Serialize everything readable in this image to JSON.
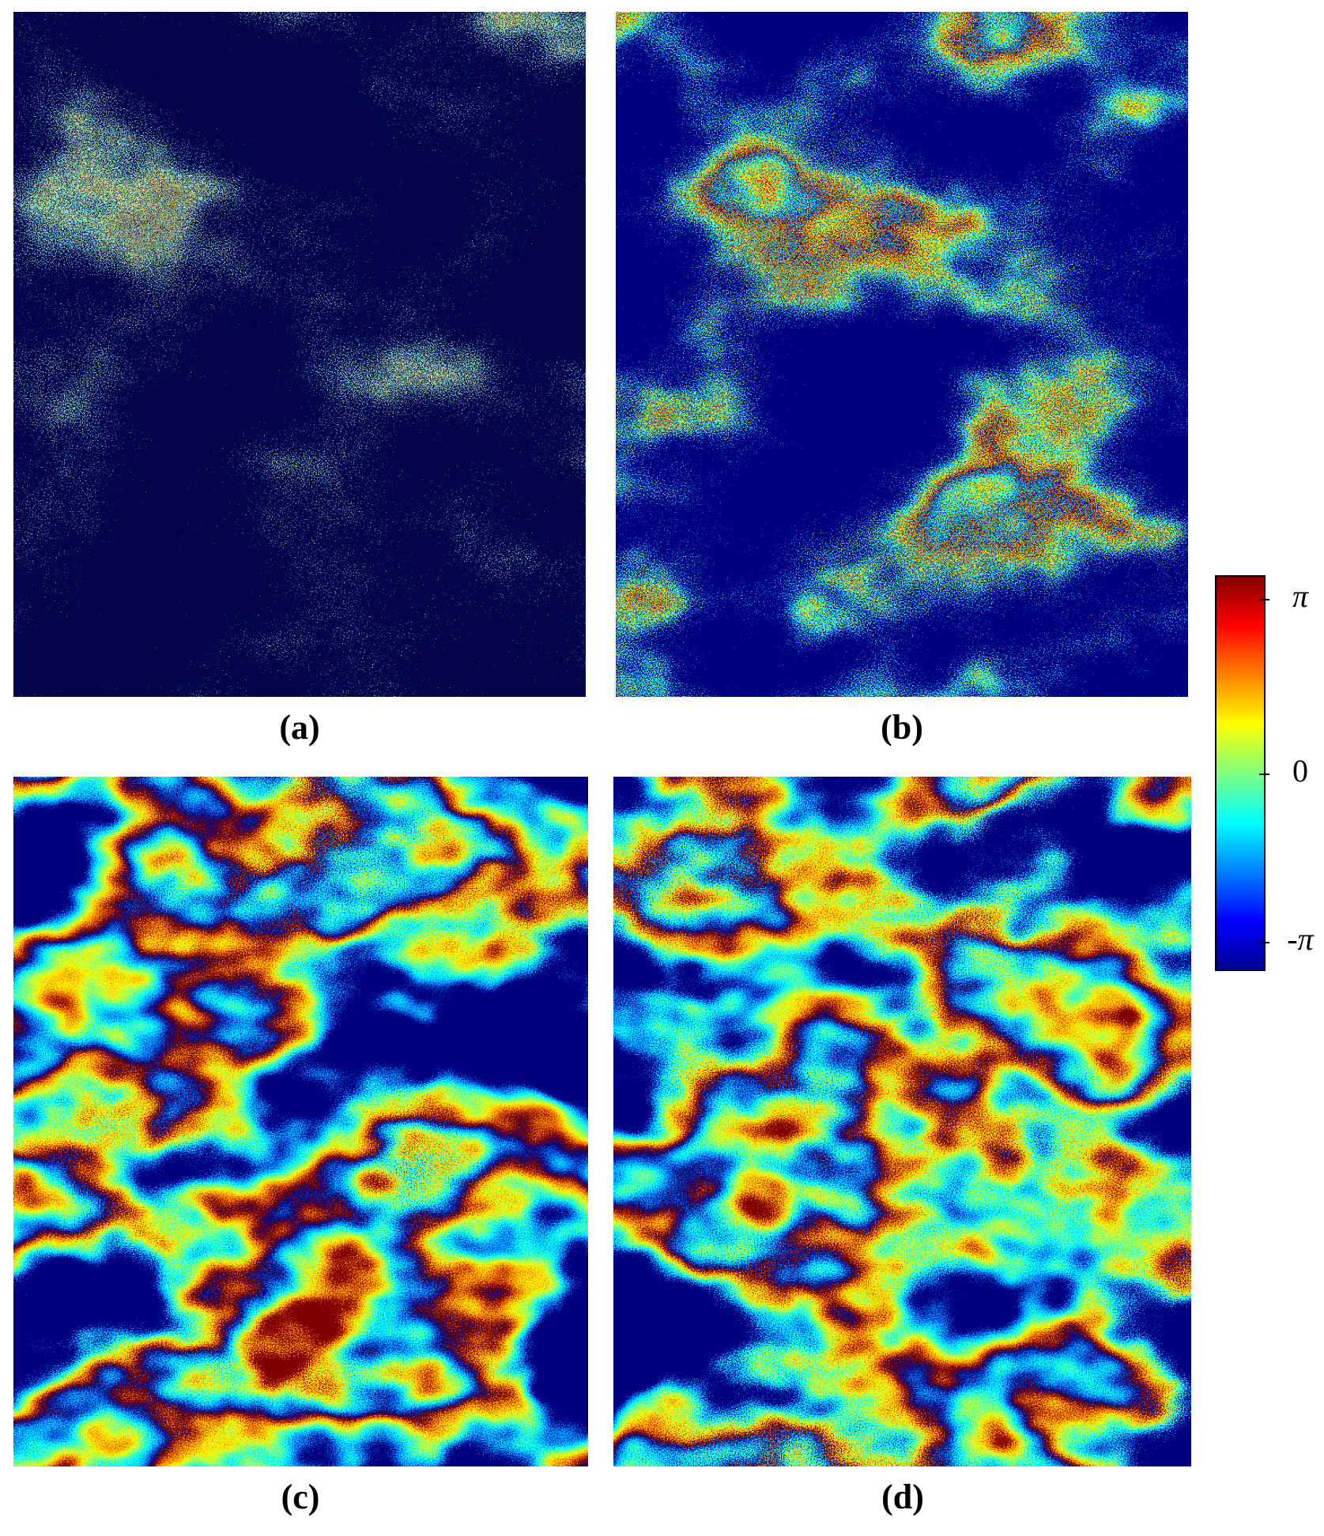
{
  "panels": [
    {
      "label": "(a)"
    },
    {
      "label": "(b)"
    },
    {
      "label": "(c)"
    },
    {
      "label": "(d)"
    }
  ],
  "colorbar": {
    "tick_labels": [
      "π",
      "0",
      "-π"
    ]
  }
}
